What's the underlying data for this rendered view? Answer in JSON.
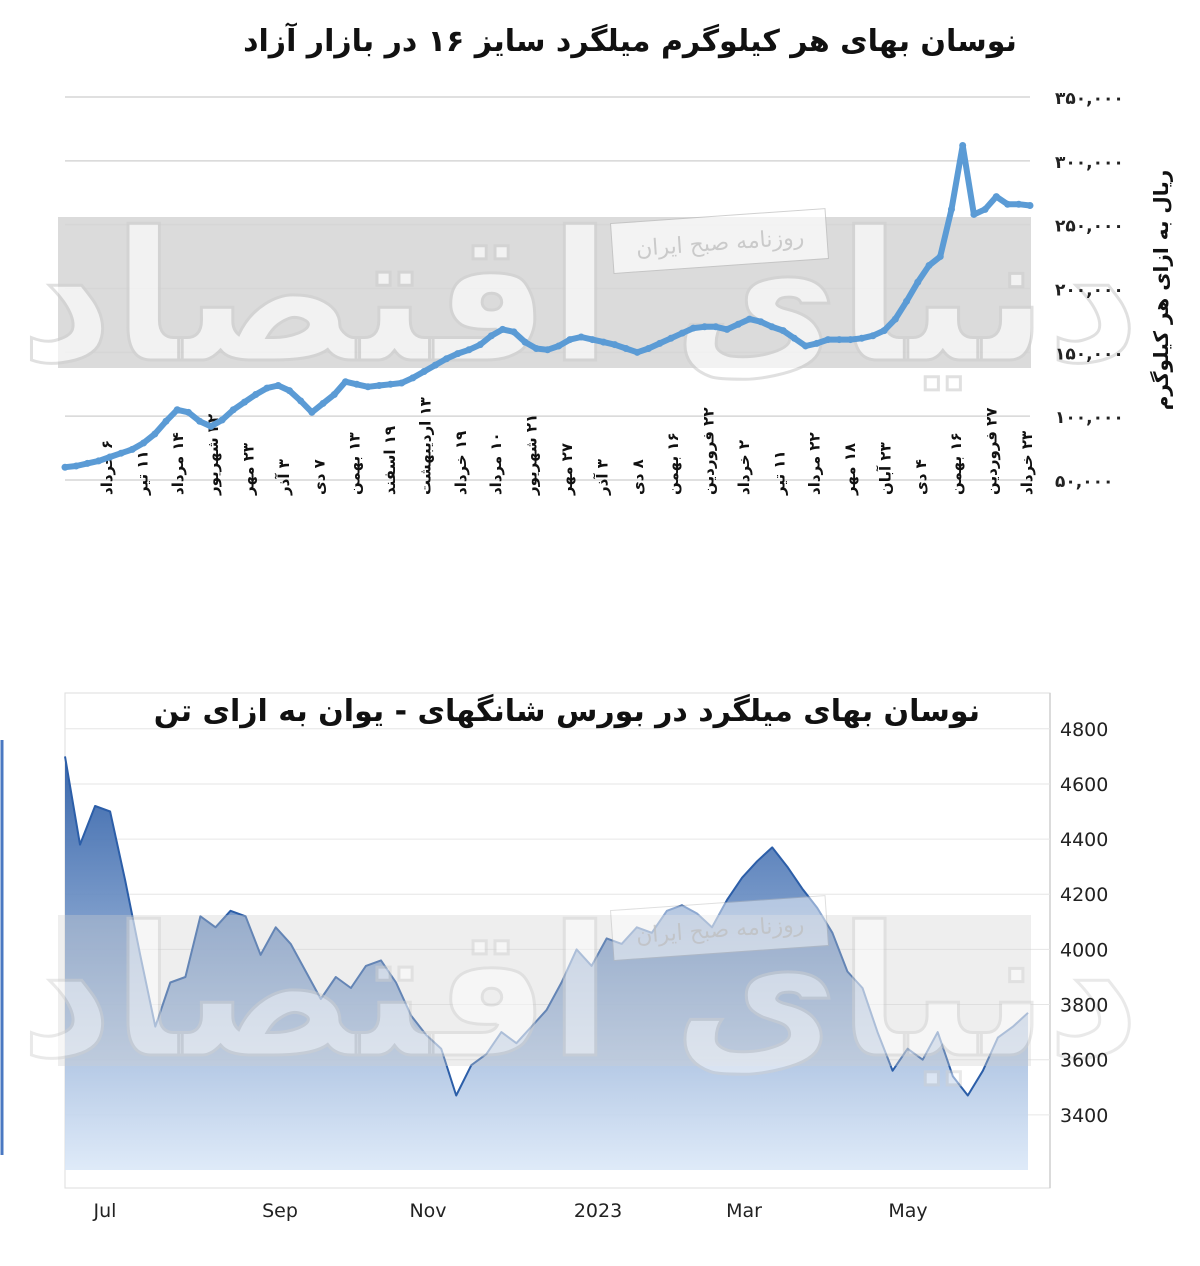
{
  "colors": {
    "top_line": "#5b9bd5",
    "bottom_line": "#2c5ea8",
    "bottom_fill_top": "#2f5fa7",
    "bottom_fill_bottom": "#dbe8f8",
    "band": "#cfcfcf",
    "grid": "#d6d6d6"
  },
  "watermark": {
    "main": "دنیای اقتصاد",
    "badge": "روزنامه صبح ایران"
  },
  "chart_data": [
    {
      "type": "line",
      "title": "نوسان بهای هر کیلوگرم میلگرد سایز ۱۶ در بازار آزاد",
      "ylabel": "ریال به ازای هر کیلوگرم",
      "xlabel": "",
      "ylim": [
        50000,
        350000
      ],
      "yticks": [
        50000,
        100000,
        150000,
        200000,
        250000,
        300000,
        350000
      ],
      "ytick_labels": [
        "۵۰,۰۰۰",
        "۱۰۰,۰۰۰",
        "۱۵۰,۰۰۰",
        "۲۰۰,۰۰۰",
        "۲۵۰,۰۰۰",
        "۳۰۰,۰۰۰",
        "۳۵۰,۰۰۰"
      ],
      "xtick_labels": [
        "۶ خرداد",
        "۱۱ تیر",
        "۱۴ مرداد",
        "۲۲ شهریور",
        "۲۳ مهر",
        "۳ آذر",
        "۷ دی",
        "۱۳ بهمن",
        "۱۹ اسفند",
        "۱۳ اردیبهشت",
        "۱۹ خرداد",
        "۱۰ مرداد",
        "۲۱ شهریور",
        "۲۷ مهر",
        "۳ آذر",
        "۸ دی",
        "۱۶ بهمن",
        "۲۲ فروردین",
        "۲ خرداد",
        "۱۱ تیر",
        "۲۲ مرداد",
        "۱۸ مهر",
        "۲۳ آبان",
        "۴ دی",
        "۱۶ بهمن",
        "۲۷ فروردین",
        "۲۳ خرداد"
      ],
      "grid": true,
      "series": [
        {
          "values": [
            60000,
            61000,
            63000,
            65000,
            68000,
            71000,
            74000,
            79000,
            86000,
            96000,
            105000,
            103000,
            96000,
            92000,
            97000,
            105000,
            111000,
            117000,
            122000,
            124000,
            120000,
            112000,
            103000,
            110000,
            117000,
            127000,
            125000,
            123000,
            124000,
            125000,
            126000,
            130000,
            135000,
            140000,
            145000,
            149000,
            152000,
            156000,
            163000,
            168000,
            166000,
            158000,
            153000,
            152000,
            155000,
            160000,
            162000,
            160000,
            158000,
            156000,
            153000,
            150000,
            153000,
            157000,
            161000,
            165000,
            169000,
            170000,
            170000,
            168000,
            172000,
            176000,
            174000,
            170000,
            167000,
            161000,
            155000,
            157000,
            160000,
            160000,
            160000,
            161000,
            163000,
            167000,
            176000,
            190000,
            205000,
            218000,
            225000,
            262000,
            312000,
            258000,
            262000,
            272000,
            266000,
            266000,
            265000
          ]
        }
      ]
    },
    {
      "type": "area",
      "title": "نوسان بهای میلگرد در بورس شانگهای - یوان به ازای تن",
      "xlabel": "",
      "ylabel": "",
      "ylim": [
        3200,
        4850
      ],
      "yticks": [
        3400,
        3600,
        3800,
        4000,
        4200,
        4400,
        4600,
        4800
      ],
      "ytick_labels": [
        "3400",
        "3600",
        "3800",
        "4000",
        "4200",
        "4400",
        "4600",
        "4800"
      ],
      "xtick_labels": [
        "Jul",
        "Sep",
        "Nov",
        "2023",
        "Mar",
        "May"
      ],
      "grid": true,
      "series": [
        {
          "values": [
            4700,
            4380,
            4520,
            4500,
            4250,
            3980,
            3720,
            3880,
            3900,
            4120,
            4080,
            4140,
            4120,
            3980,
            4080,
            4020,
            3920,
            3820,
            3900,
            3860,
            3940,
            3960,
            3880,
            3760,
            3690,
            3640,
            3470,
            3580,
            3620,
            3700,
            3660,
            3720,
            3780,
            3880,
            4000,
            3940,
            4040,
            4020,
            4080,
            4060,
            4140,
            4160,
            4130,
            4080,
            4180,
            4260,
            4320,
            4370,
            4300,
            4220,
            4150,
            4060,
            3920,
            3860,
            3700,
            3560,
            3640,
            3600,
            3700,
            3540,
            3470,
            3560,
            3680,
            3720,
            3770
          ]
        }
      ]
    }
  ]
}
